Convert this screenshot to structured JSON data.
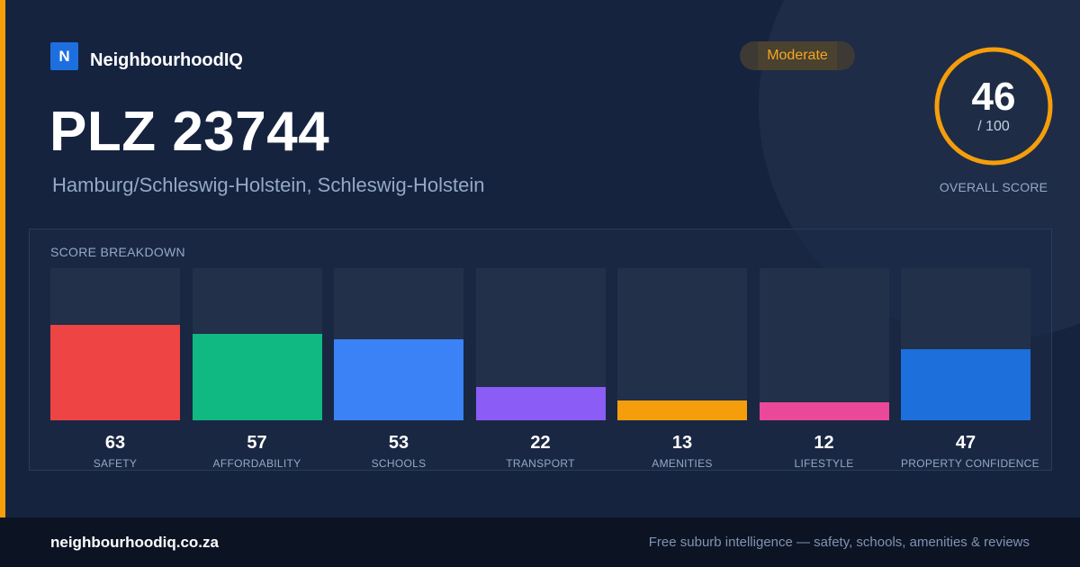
{
  "brand": {
    "logo_letter": "N",
    "name": "NeighbourhoodIQ",
    "accent_color": "#f59e0b",
    "logo_color": "#1d6fe0"
  },
  "location": {
    "title": "PLZ 23744",
    "subtitle": "Hamburg/Schleswig-Holstein, Schleswig-Holstein"
  },
  "badge": {
    "label": "Moderate",
    "color": "#f5a623"
  },
  "overall": {
    "value": 46,
    "max_label": "/ 100",
    "max": 100,
    "label": "OVERALL SCORE",
    "ring_color": "#f59e0b"
  },
  "breakdown": {
    "title": "SCORE BREAKDOWN",
    "items": [
      {
        "label": "SAFETY",
        "value": 63,
        "color": "#ef4444"
      },
      {
        "label": "AFFORDABILITY",
        "value": 57,
        "color": "#10b981"
      },
      {
        "label": "SCHOOLS",
        "value": 53,
        "color": "#3b82f6"
      },
      {
        "label": "TRANSPORT",
        "value": 22,
        "color": "#8b5cf6"
      },
      {
        "label": "AMENITIES",
        "value": 13,
        "color": "#f59e0b"
      },
      {
        "label": "LIFESTYLE",
        "value": 12,
        "color": "#ec4899"
      },
      {
        "label": "PROPERTY CONFIDENCE",
        "value": 47,
        "color": "#1d6fdc"
      }
    ]
  },
  "footer": {
    "domain": "neighbourhoodiq.co.za",
    "tagline": "Free suburb intelligence — safety, schools, amenities & reviews"
  }
}
